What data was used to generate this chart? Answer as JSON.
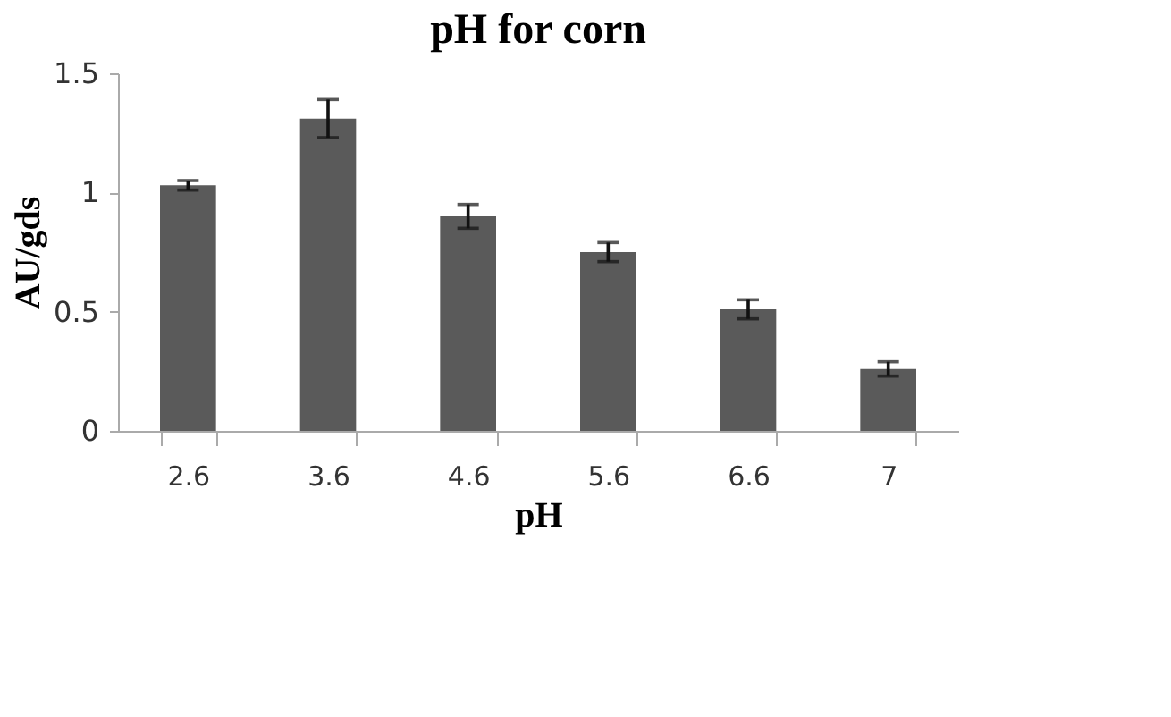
{
  "chart_data": {
    "type": "bar",
    "title": "pH for corn",
    "xlabel": "pH",
    "ylabel": "AU/gds",
    "categories": [
      "2.6",
      "3.6",
      "4.6",
      "5.6",
      "6.6",
      "7"
    ],
    "values": [
      1.03,
      1.31,
      0.9,
      0.75,
      0.51,
      0.26
    ],
    "errors": [
      0.02,
      0.08,
      0.05,
      0.04,
      0.04,
      0.03
    ],
    "color": "#5a5a5a",
    "ylim": [
      0,
      1.5
    ],
    "yticks": [
      0,
      0.5,
      1,
      1.5
    ],
    "grid": false
  }
}
